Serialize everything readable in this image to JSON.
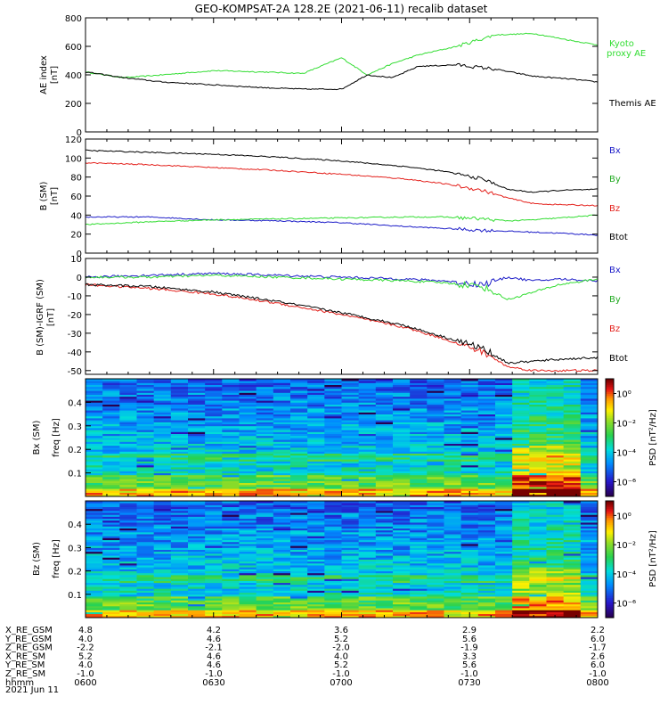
{
  "title": "GEO-KOMPSAT-2A 128.2E (2021-06-11) recalib dataset",
  "colors": {
    "black": "#000000",
    "red": "#e4211c",
    "blue": "#1c1cc8",
    "green": "#33dd33",
    "kyoto": "#33dd33"
  },
  "chart_data": [
    {
      "type": "line",
      "panel": "AE index",
      "ylabel": "AE index",
      "yunit": "[nT]",
      "ylim": [
        0,
        800
      ],
      "yticks": [
        "0",
        "200",
        "400",
        "600",
        "800"
      ],
      "x_hours": [
        6.0,
        6.15,
        6.3,
        6.5,
        6.7,
        6.85,
        7.0,
        7.05,
        7.1,
        7.2,
        7.3,
        7.45,
        7.6,
        7.75,
        7.9,
        8.0
      ],
      "series": [
        {
          "name": "Kyoto proxy AE",
          "color_key": "kyoto",
          "values": [
            420,
            380,
            400,
            430,
            420,
            410,
            520,
            460,
            400,
            480,
            540,
            600,
            680,
            690,
            640,
            610
          ]
        },
        {
          "name": "Themis AE",
          "color_key": "black",
          "values": [
            420,
            380,
            350,
            330,
            310,
            300,
            300,
            350,
            400,
            380,
            460,
            470,
            440,
            390,
            370,
            350
          ]
        }
      ]
    },
    {
      "type": "line",
      "panel": "B (SM)",
      "ylabel": "B (SM)",
      "yunit": "[nT]",
      "ylim": [
        0,
        120
      ],
      "yticks": [
        "0",
        "20",
        "40",
        "60",
        "80",
        "100",
        "120"
      ],
      "x_hours": [
        6.0,
        6.25,
        6.5,
        6.75,
        7.0,
        7.25,
        7.4,
        7.55,
        7.65,
        7.75,
        7.85,
        8.0
      ],
      "series": [
        {
          "name": "Bx",
          "color_key": "blue",
          "values": [
            38,
            38,
            35,
            34,
            32,
            28,
            26,
            24,
            23,
            22,
            21,
            19
          ]
        },
        {
          "name": "By",
          "color_key": "green",
          "values": [
            30,
            33,
            35,
            36,
            37,
            38,
            38,
            36,
            34,
            35,
            37,
            40
          ]
        },
        {
          "name": "Bz",
          "color_key": "red",
          "values": [
            95,
            93,
            90,
            87,
            83,
            78,
            73,
            66,
            58,
            52,
            51,
            50
          ]
        },
        {
          "name": "Btot",
          "color_key": "black",
          "values": [
            108,
            106,
            104,
            101,
            97,
            91,
            86,
            78,
            67,
            64,
            66,
            67
          ]
        }
      ]
    },
    {
      "type": "line",
      "panel": "B (SM)-IGRF (SM)",
      "ylabel": "B (SM)-IGRF (SM)",
      "yunit": "[nT]",
      "ylim": [
        -52,
        10
      ],
      "yticks": [
        "-50",
        "-40",
        "-30",
        "-20",
        "-10",
        "0",
        "10"
      ],
      "x_hours": [
        6.0,
        6.25,
        6.5,
        6.75,
        7.0,
        7.25,
        7.4,
        7.55,
        7.65,
        7.75,
        7.85,
        8.0
      ],
      "series": [
        {
          "name": "Bx",
          "color_key": "blue",
          "values": [
            0,
            1,
            2,
            1,
            0,
            -1,
            -2,
            -4,
            0,
            -2,
            -1,
            -2
          ]
        },
        {
          "name": "By",
          "color_key": "green",
          "values": [
            0,
            0,
            1,
            0,
            -1,
            -2,
            -3,
            -5,
            -12,
            -8,
            -4,
            -1
          ]
        },
        {
          "name": "Bz",
          "color_key": "red",
          "values": [
            -4,
            -6,
            -9,
            -14,
            -20,
            -27,
            -33,
            -40,
            -48,
            -50,
            -50,
            -50
          ]
        },
        {
          "name": "Btot",
          "color_key": "black",
          "values": [
            -4,
            -5,
            -8,
            -13,
            -19,
            -26,
            -32,
            -38,
            -46,
            -45,
            -44,
            -43
          ]
        }
      ]
    },
    {
      "type": "heatmap",
      "panel": "Bx (SM) spectrogram",
      "ylabel": "Bx (SM)",
      "yunit": "freq [Hz]",
      "ylim": [
        0,
        0.5
      ],
      "yticks": [
        "0.1",
        "0.2",
        "0.3",
        "0.4"
      ],
      "colorbar_label": "PSD [nT²/Hz]",
      "colorbar_ticks": [
        "10⁰",
        "10⁻²",
        "10⁻⁴",
        "10⁻⁶"
      ],
      "colorbar_log_range": [
        -7,
        1
      ]
    },
    {
      "type": "heatmap",
      "panel": "Bz (SM) spectrogram",
      "ylabel": "Bz (SM)",
      "yunit": "freq [Hz]",
      "ylim": [
        0,
        0.5
      ],
      "yticks": [
        "0.1",
        "0.2",
        "0.3",
        "0.4"
      ],
      "colorbar_label": "PSD [nT²/Hz]",
      "colorbar_ticks": [
        "10⁰",
        "10⁻²",
        "10⁻⁴",
        "10⁻⁶"
      ],
      "colorbar_log_range": [
        -7,
        1
      ]
    }
  ],
  "ae_legend": {
    "kyoto_line1": "Kyoto",
    "kyoto_line2": "proxy AE",
    "themis": "Themis AE"
  },
  "b_legend": [
    "Bx",
    "By",
    "Bz",
    "Btot"
  ],
  "db_legend": [
    "Bx",
    "By",
    "Bz",
    "Btot"
  ],
  "ephemeris": {
    "row_labels": [
      "X_RE_GSM",
      "Y_RE_GSM",
      "Z_RE_GSM",
      "X_RE_SM",
      "Y_RE_SM",
      "Z_RE_SM",
      "hhmm"
    ],
    "columns": [
      [
        "4.8",
        "4.0",
        "-2.2",
        "5.2",
        "4.0",
        "-1.0",
        "0600"
      ],
      [
        "4.2",
        "4.6",
        "-2.1",
        "4.6",
        "4.6",
        "-1.0",
        "0630"
      ],
      [
        "3.6",
        "5.2",
        "-2.0",
        "4.0",
        "5.2",
        "-1.0",
        "0700"
      ],
      [
        "2.9",
        "5.6",
        "-1.9",
        "3.3",
        "5.6",
        "-1.0",
        "0730"
      ],
      [
        "2.2",
        "6.0",
        "-1.7",
        "2.6",
        "6.0",
        "-1.0",
        "0800"
      ]
    ],
    "date": "2021 Jun 11"
  }
}
